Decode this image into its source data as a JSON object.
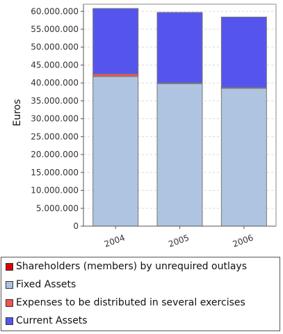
{
  "chart_data": {
    "type": "bar",
    "stacked": true,
    "categories": [
      "2004",
      "2005",
      "2006"
    ],
    "ylabel": "Euros",
    "xlabel": "",
    "ylim": [
      0,
      62000000
    ],
    "yticks": [
      0,
      5000000,
      10000000,
      15000000,
      20000000,
      25000000,
      30000000,
      35000000,
      40000000,
      45000000,
      50000000,
      55000000,
      60000000
    ],
    "ytick_labels": [
      "0",
      "5.000.000",
      "10.000.000",
      "15.000.000",
      "20.000.000",
      "25.000.000",
      "30.000.000",
      "35.000.000",
      "40.000.000",
      "45.000.000",
      "50.000.000",
      "55.000.000",
      "60.000.000"
    ],
    "grid": true,
    "legend_position": "bottom",
    "series": [
      {
        "name": "Shareholders (members) by unrequired outlays",
        "color": "#dd0000",
        "values": [
          0,
          0,
          0
        ]
      },
      {
        "name": "Fixed Assets",
        "color": "#aec4e0",
        "values": [
          41800000,
          39800000,
          38500000
        ]
      },
      {
        "name": "Expenses to be distributed in several exercises",
        "color": "#ee5555",
        "values": [
          700000,
          200000,
          200000
        ]
      },
      {
        "name": "Current Assets",
        "color": "#5555ee",
        "values": [
          18300000,
          19700000,
          19700000
        ]
      }
    ]
  }
}
